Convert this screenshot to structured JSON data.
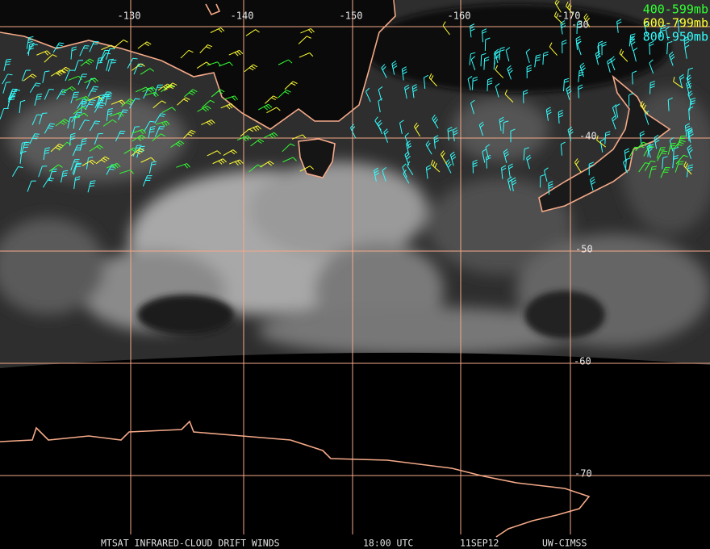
{
  "map": {
    "lon_labels": [
      -130,
      -140,
      -150,
      -160,
      -170
    ],
    "lat_labels": [
      -30,
      -40,
      -50,
      -60,
      -70
    ],
    "legend": [
      {
        "label": "400-599mb",
        "color": "#33ff33"
      },
      {
        "label": "600-799mb",
        "color": "#ffff33"
      },
      {
        "label": "800-950mb",
        "color": "#33ffff"
      }
    ],
    "footer": [
      "MTSAT INFRARED-CLOUD DRIFT WINDS",
      "18:00 UTC",
      "11SEP12",
      "UW-CIMSS"
    ]
  }
}
